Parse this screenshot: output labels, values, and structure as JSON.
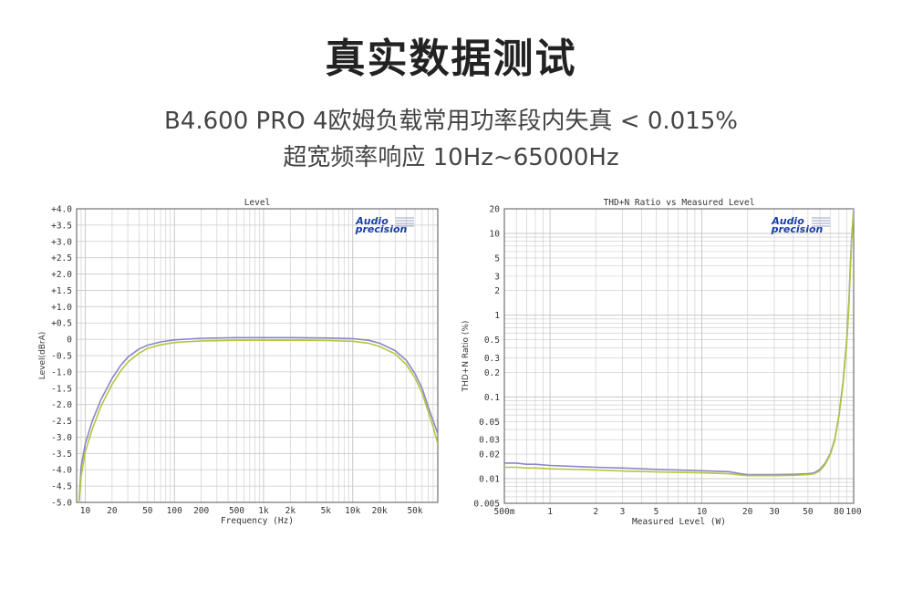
{
  "page": {
    "title": "真实数据测试",
    "subtitle1": "B4.600 PRO 4欧姆负载常用功率段内失真 < 0.015%",
    "subtitle2": "超宽频率响应 10Hz~65000Hz"
  },
  "brand": {
    "line1": "Audio",
    "line2": "precision",
    "color": "#1a3ea8"
  },
  "colors": {
    "series_purple": "#8a86c8",
    "series_green": "#b6c63a",
    "grid": "#c9c9c9",
    "plot_border": "#555555"
  },
  "chart_data": [
    {
      "type": "line",
      "title": "Level",
      "xlabel": "Frequency (Hz)",
      "ylabel": "Level(dBrA)",
      "x_scale": "log",
      "xlim": [
        8,
        90000
      ],
      "ylim": [
        -5.0,
        4.0
      ],
      "grid": true,
      "x_ticks": [
        {
          "v": 10,
          "label": "10"
        },
        {
          "v": 20,
          "label": "20"
        },
        {
          "v": 50,
          "label": "50"
        },
        {
          "v": 100,
          "label": "100"
        },
        {
          "v": 200,
          "label": "200"
        },
        {
          "v": 500,
          "label": "500"
        },
        {
          "v": 1000,
          "label": "1k"
        },
        {
          "v": 2000,
          "label": "2k"
        },
        {
          "v": 5000,
          "label": "5k"
        },
        {
          "v": 10000,
          "label": "10k"
        },
        {
          "v": 20000,
          "label": "20k"
        },
        {
          "v": 50000,
          "label": "50k"
        }
      ],
      "y_ticks": [
        {
          "v": 4.0,
          "label": "+4.0"
        },
        {
          "v": 3.5,
          "label": "+3.5"
        },
        {
          "v": 3.0,
          "label": "+3.0"
        },
        {
          "v": 2.5,
          "label": "+2.5"
        },
        {
          "v": 2.0,
          "label": "+2.0"
        },
        {
          "v": 1.5,
          "label": "+1.5"
        },
        {
          "v": 1.0,
          "label": "+1.0"
        },
        {
          "v": 0.5,
          "label": "+0.5"
        },
        {
          "v": 0,
          "label": "0"
        },
        {
          "v": -0.5,
          "label": "-0.5"
        },
        {
          "v": -1.0,
          "label": "-1.0"
        },
        {
          "v": -1.5,
          "label": "-1.5"
        },
        {
          "v": -2.0,
          "label": "-2.0"
        },
        {
          "v": -2.5,
          "label": "-2.5"
        },
        {
          "v": -3.0,
          "label": "-3.0"
        },
        {
          "v": -3.5,
          "label": "-3.5"
        },
        {
          "v": -4.0,
          "label": "-4.0"
        },
        {
          "v": -4.5,
          "label": "-4.5"
        },
        {
          "v": -5.0,
          "label": "-5.0"
        }
      ],
      "series": [
        {
          "color": "#8a86c8",
          "x": [
            8.5,
            9,
            10,
            12,
            15,
            20,
            25,
            30,
            40,
            50,
            70,
            100,
            200,
            500,
            1000,
            2000,
            5000,
            10000,
            15000,
            20000,
            30000,
            40000,
            50000,
            60000,
            70000,
            80000,
            90000
          ],
          "y": [
            -5.0,
            -3.9,
            -3.2,
            -2.5,
            -1.85,
            -1.2,
            -0.8,
            -0.55,
            -0.3,
            -0.18,
            -0.08,
            -0.02,
            0.03,
            0.05,
            0.05,
            0.05,
            0.04,
            0.02,
            -0.03,
            -0.12,
            -0.35,
            -0.65,
            -1.05,
            -1.5,
            -2.05,
            -2.5,
            -2.9
          ]
        },
        {
          "color": "#b6c63a",
          "x": [
            8.5,
            9,
            10,
            12,
            15,
            20,
            25,
            30,
            40,
            50,
            70,
            100,
            200,
            500,
            1000,
            2000,
            5000,
            10000,
            15000,
            20000,
            30000,
            40000,
            50000,
            60000,
            70000,
            80000,
            90000
          ],
          "y": [
            -5.0,
            -4.2,
            -3.45,
            -2.75,
            -2.05,
            -1.38,
            -0.97,
            -0.7,
            -0.43,
            -0.28,
            -0.17,
            -0.1,
            -0.05,
            -0.03,
            -0.03,
            -0.03,
            -0.04,
            -0.06,
            -0.12,
            -0.22,
            -0.45,
            -0.78,
            -1.18,
            -1.65,
            -2.2,
            -2.7,
            -3.2
          ]
        }
      ]
    },
    {
      "type": "line",
      "title": "THD+N Ratio vs Measured Level",
      "xlabel": "Measured Level (W)",
      "ylabel": "THD+N Ratio (%)",
      "x_scale": "log",
      "y_scale": "log",
      "xlim": [
        0.5,
        100
      ],
      "ylim": [
        0.005,
        20
      ],
      "grid": true,
      "x_ticks": [
        {
          "v": 0.5,
          "label": "500m"
        },
        {
          "v": 1,
          "label": "1"
        },
        {
          "v": 2,
          "label": "2"
        },
        {
          "v": 3,
          "label": "3"
        },
        {
          "v": 5,
          "label": "5"
        },
        {
          "v": 10,
          "label": "10"
        },
        {
          "v": 20,
          "label": "20"
        },
        {
          "v": 30,
          "label": "30"
        },
        {
          "v": 50,
          "label": "50"
        },
        {
          "v": 80,
          "label": "80"
        },
        {
          "v": 100,
          "label": "100"
        }
      ],
      "y_ticks": [
        {
          "v": 20,
          "label": "20"
        },
        {
          "v": 10,
          "label": "10"
        },
        {
          "v": 5,
          "label": "5"
        },
        {
          "v": 3,
          "label": "3"
        },
        {
          "v": 2,
          "label": "2"
        },
        {
          "v": 1,
          "label": "1"
        },
        {
          "v": 0.5,
          "label": "0.5"
        },
        {
          "v": 0.3,
          "label": "0.3"
        },
        {
          "v": 0.2,
          "label": "0.2"
        },
        {
          "v": 0.1,
          "label": "0.1"
        },
        {
          "v": 0.05,
          "label": "0.05"
        },
        {
          "v": 0.03,
          "label": "0.03"
        },
        {
          "v": 0.02,
          "label": "0.02"
        },
        {
          "v": 0.01,
          "label": "0.01"
        },
        {
          "v": 0.005,
          "label": "0.005"
        }
      ],
      "series": [
        {
          "color": "#8a86c8",
          "x": [
            0.5,
            0.6,
            0.7,
            0.8,
            1,
            2,
            3,
            5,
            10,
            15,
            18,
            20,
            30,
            40,
            50,
            55,
            60,
            65,
            70,
            75,
            80,
            85,
            90,
            93,
            95,
            97,
            100
          ],
          "y": [
            0.0155,
            0.0155,
            0.015,
            0.015,
            0.0145,
            0.0138,
            0.0135,
            0.013,
            0.0125,
            0.0122,
            0.0115,
            0.0112,
            0.0112,
            0.0113,
            0.0115,
            0.0118,
            0.013,
            0.0155,
            0.02,
            0.03,
            0.06,
            0.15,
            0.5,
            1.5,
            4.0,
            9.0,
            20
          ]
        },
        {
          "color": "#b6c63a",
          "x": [
            0.5,
            0.6,
            0.7,
            0.8,
            1,
            2,
            3,
            5,
            10,
            15,
            18,
            20,
            30,
            40,
            50,
            55,
            60,
            65,
            70,
            75,
            80,
            85,
            90,
            93,
            95,
            97,
            100
          ],
          "y": [
            0.0138,
            0.0138,
            0.0135,
            0.0135,
            0.0132,
            0.0128,
            0.0124,
            0.0121,
            0.0118,
            0.0115,
            0.0111,
            0.0109,
            0.0109,
            0.011,
            0.0112,
            0.0115,
            0.0125,
            0.015,
            0.0195,
            0.029,
            0.058,
            0.14,
            0.45,
            1.3,
            3.5,
            8.0,
            20
          ]
        }
      ]
    }
  ]
}
